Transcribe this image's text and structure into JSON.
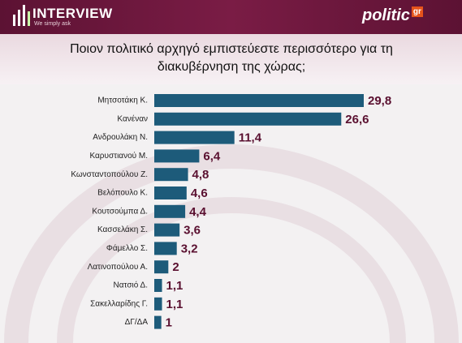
{
  "header": {
    "logo": "INTERVIEW",
    "tagline": "We simply ask",
    "brand": "politic",
    "brand_suffix": "gr"
  },
  "chart_data": {
    "type": "bar",
    "orientation": "horizontal",
    "title": "Ποιον πολιτικό αρχηγό εμπιστεύεστε περισσότερο για τη διακυβέρνηση της χώρας;",
    "categories": [
      "Μητσοτάκη Κ.",
      "Κανέναν",
      "Ανδρουλάκη Ν.",
      "Καρυστιανού Μ.",
      "Κωνσταντοπούλου Ζ.",
      "Βελόπουλο Κ.",
      "Κουτσούμπα Δ.",
      "Κασσελάκη Σ.",
      "Φάμελλο Σ.",
      "Λατινοπούλου Α.",
      "Νατσιό Δ.",
      "Σακελλαρίδης Γ.",
      "ΔΓ/ΔΑ"
    ],
    "values": [
      29.8,
      26.6,
      11.4,
      6.4,
      4.8,
      4.6,
      4.4,
      3.6,
      3.2,
      2,
      1.1,
      1.1,
      1
    ],
    "value_labels": [
      "29,8",
      "26,6",
      "11,4",
      "6,4",
      "4,8",
      "4,6",
      "4,4",
      "3,6",
      "3,2",
      "2",
      "1,1",
      "1,1",
      "1"
    ],
    "color": "#1d5b7a"
  }
}
